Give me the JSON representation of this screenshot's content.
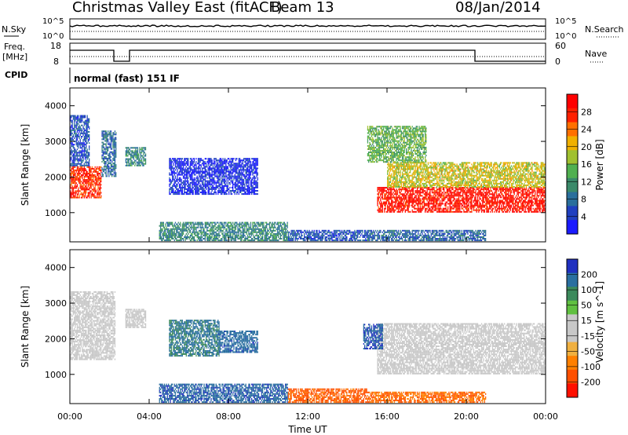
{
  "header": {
    "title": "Christmas Valley East (fitACF)",
    "beam": "Beam 13",
    "date": "08/Jan/2014"
  },
  "status": {
    "nsky_label": "N.Sky",
    "nsky_top": "10^5",
    "nsky_bottom": "10^0",
    "nsearch_label": "N.Search",
    "nsearch_top_right": "10^5",
    "nsearch_bottom_right": "10^0",
    "freq_label": "Freq.",
    "freq_unit": "[MHz]",
    "freq_top": "18",
    "freq_bottom": "8",
    "nave_label": "Nave",
    "nave_top": "60",
    "nave_bottom": "0",
    "cpid_label": "CPID",
    "cpid_value": "normal (fast) 151 IF"
  },
  "axes": {
    "ylabel": "Slant Range [km]",
    "xlabel": "Time UT",
    "yticks": [
      1000,
      2000,
      3000,
      4000
    ],
    "xticks": [
      "00:00",
      "04:00",
      "08:00",
      "12:00",
      "16:00",
      "20:00",
      "00:00"
    ],
    "ylim": [
      180,
      4500
    ],
    "xlim_hours": [
      0,
      24
    ]
  },
  "colors": {
    "power": [
      "#1a1aff",
      "#2040c0",
      "#2a6f9c",
      "#3a8a6a",
      "#50b050",
      "#a0c030",
      "#f0b000",
      "#ff7000",
      "#ff2000",
      "#ff0000"
    ],
    "velocity_pos": [
      "#2030c0",
      "#2a6fa0",
      "#3c8a5c",
      "#60c040"
    ],
    "velocity_gray": "#c8c8c8",
    "velocity_neg": [
      "#f0b040",
      "#ff8000",
      "#ff5000",
      "#ff1000"
    ]
  },
  "chart_data": [
    {
      "type": "heatmap",
      "name": "power",
      "colorbar_label": "Power [dB]",
      "colorbar_ticks": [
        "28",
        "24",
        "20",
        "16",
        "12",
        "8",
        "4"
      ],
      "regions": [
        {
          "t0": 0.0,
          "t1": 1.6,
          "r0": 1400,
          "r1": 2300,
          "level": 0.9
        },
        {
          "t0": 0.0,
          "t1": 1.0,
          "r0": 2300,
          "r1": 3700,
          "level": 0.15
        },
        {
          "t0": 1.6,
          "t1": 2.3,
          "r0": 2000,
          "r1": 3300,
          "level": 0.2
        },
        {
          "t0": 2.8,
          "t1": 3.8,
          "r0": 2300,
          "r1": 2800,
          "level": 0.3
        },
        {
          "t0": 5.0,
          "t1": 9.5,
          "r0": 1500,
          "r1": 2500,
          "level": 0.05
        },
        {
          "t0": 4.5,
          "t1": 11.0,
          "r0": 200,
          "r1": 700,
          "level": 0.3
        },
        {
          "t0": 11.0,
          "t1": 15.0,
          "r0": 200,
          "r1": 500,
          "level": 0.15
        },
        {
          "t0": 15.0,
          "t1": 21.0,
          "r0": 200,
          "r1": 500,
          "level": 0.2
        },
        {
          "t0": 15.5,
          "t1": 24.0,
          "r0": 1000,
          "r1": 1700,
          "level": 0.95
        },
        {
          "t0": 16.0,
          "t1": 24.0,
          "r0": 1700,
          "r1": 2400,
          "level": 0.6
        },
        {
          "t0": 15.0,
          "t1": 18.0,
          "r0": 2400,
          "r1": 3400,
          "level": 0.45
        }
      ]
    },
    {
      "type": "heatmap",
      "name": "velocity",
      "colorbar_label": "Velocity [m s^-1]",
      "colorbar_ticks": [
        "200",
        "100",
        "50",
        "15",
        "-15",
        "-50",
        "-100",
        "-200"
      ],
      "regions": [
        {
          "t0": 0.0,
          "t1": 2.3,
          "r0": 1400,
          "r1": 3300,
          "level": 0.0
        },
        {
          "t0": 2.8,
          "t1": 3.8,
          "r0": 2300,
          "r1": 2800,
          "level": 0.0
        },
        {
          "t0": 5.0,
          "t1": 7.5,
          "r0": 1500,
          "r1": 2500,
          "level": 0.55
        },
        {
          "t0": 7.5,
          "t1": 9.5,
          "r0": 1600,
          "r1": 2200,
          "level": 0.7
        },
        {
          "t0": 4.5,
          "t1": 11.0,
          "r0": 200,
          "r1": 700,
          "level": 0.75
        },
        {
          "t0": 11.0,
          "t1": 15.0,
          "r0": 200,
          "r1": 600,
          "level": -0.6
        },
        {
          "t0": 15.0,
          "t1": 21.0,
          "r0": 200,
          "r1": 500,
          "level": -0.5
        },
        {
          "t0": 15.5,
          "t1": 24.0,
          "r0": 1000,
          "r1": 2400,
          "level": 0.0
        },
        {
          "t0": 14.8,
          "t1": 15.8,
          "r0": 1700,
          "r1": 2400,
          "level": 0.8
        }
      ]
    }
  ]
}
